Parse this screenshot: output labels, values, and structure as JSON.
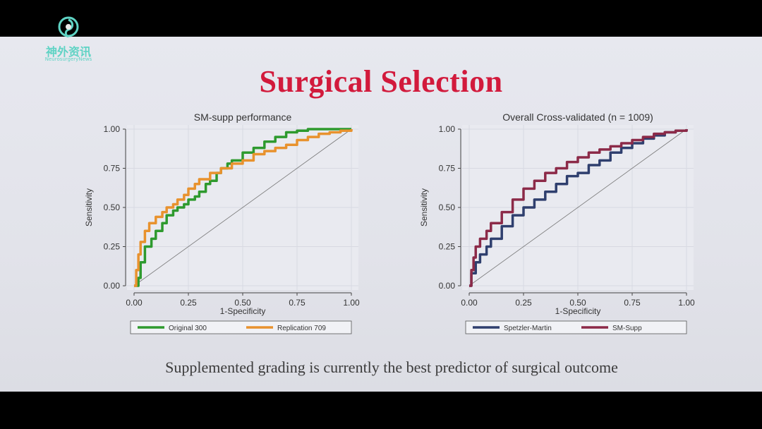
{
  "logo": {
    "name": "神外资讯",
    "subtitle": "NeurosurgeryNews"
  },
  "slide": {
    "title": "Surgical Selection",
    "caption": "Supplemented grading is currently the best predictor of surgical outcome"
  },
  "chart_data": [
    {
      "type": "line",
      "title": "SM-supp performance",
      "xlabel": "1-Specificity",
      "ylabel": "Sensitivity",
      "xlim": [
        0,
        1
      ],
      "ylim": [
        0,
        1
      ],
      "xticks": [
        "0.00",
        "0.25",
        "0.50",
        "0.75",
        "1.00"
      ],
      "yticks": [
        "0.00",
        "0.25",
        "0.50",
        "0.75",
        "1.00"
      ],
      "grid": true,
      "legend_position": "bottom",
      "reference_line": [
        [
          0,
          0
        ],
        [
          1,
          1
        ]
      ],
      "series": [
        {
          "name": "Original 300",
          "color": "#2e9a2e",
          "x": [
            0,
            0.02,
            0.03,
            0.05,
            0.08,
            0.1,
            0.13,
            0.15,
            0.18,
            0.2,
            0.23,
            0.25,
            0.28,
            0.3,
            0.33,
            0.35,
            0.38,
            0.4,
            0.43,
            0.45,
            0.5,
            0.55,
            0.6,
            0.65,
            0.7,
            0.75,
            0.8,
            0.85,
            0.9,
            1.0
          ],
          "y": [
            0,
            0.05,
            0.15,
            0.25,
            0.3,
            0.35,
            0.4,
            0.45,
            0.48,
            0.5,
            0.52,
            0.55,
            0.57,
            0.6,
            0.65,
            0.67,
            0.72,
            0.75,
            0.78,
            0.8,
            0.85,
            0.88,
            0.92,
            0.95,
            0.98,
            0.99,
            1.0,
            1.0,
            1.0,
            1.0
          ]
        },
        {
          "name": "Replication 709",
          "color": "#e8922e",
          "x": [
            0,
            0.01,
            0.02,
            0.03,
            0.05,
            0.07,
            0.1,
            0.13,
            0.15,
            0.18,
            0.2,
            0.23,
            0.25,
            0.28,
            0.3,
            0.35,
            0.4,
            0.45,
            0.5,
            0.55,
            0.6,
            0.65,
            0.7,
            0.75,
            0.8,
            0.85,
            0.9,
            0.95,
            1.0
          ],
          "y": [
            0,
            0.1,
            0.2,
            0.28,
            0.35,
            0.4,
            0.44,
            0.47,
            0.5,
            0.52,
            0.55,
            0.58,
            0.62,
            0.65,
            0.68,
            0.72,
            0.75,
            0.78,
            0.8,
            0.84,
            0.86,
            0.88,
            0.9,
            0.93,
            0.95,
            0.97,
            0.98,
            0.99,
            1.0
          ]
        }
      ]
    },
    {
      "type": "line",
      "title": "Overall Cross-validated (n = 1009)",
      "xlabel": "1-Specificity",
      "ylabel": "Sensitivity",
      "xlim": [
        0,
        1
      ],
      "ylim": [
        0,
        1
      ],
      "xticks": [
        "0.00",
        "0.25",
        "0.50",
        "0.75",
        "1.00"
      ],
      "yticks": [
        "0.00",
        "0.25",
        "0.50",
        "0.75",
        "1.00"
      ],
      "grid": true,
      "legend_position": "bottom",
      "reference_line": [
        [
          0,
          0
        ],
        [
          1,
          1
        ]
      ],
      "series": [
        {
          "name": "Spetzler-Martin",
          "color": "#2f3f6e",
          "x": [
            0,
            0.01,
            0.03,
            0.05,
            0.08,
            0.1,
            0.15,
            0.2,
            0.25,
            0.3,
            0.35,
            0.4,
            0.45,
            0.5,
            0.55,
            0.6,
            0.65,
            0.7,
            0.75,
            0.8,
            0.85,
            0.9,
            0.95,
            1.0
          ],
          "y": [
            0,
            0.08,
            0.15,
            0.2,
            0.25,
            0.3,
            0.38,
            0.45,
            0.5,
            0.55,
            0.6,
            0.65,
            0.7,
            0.72,
            0.77,
            0.8,
            0.85,
            0.88,
            0.91,
            0.94,
            0.96,
            0.98,
            0.99,
            1.0
          ]
        },
        {
          "name": "SM-Supp",
          "color": "#8c2a48",
          "x": [
            0,
            0.01,
            0.02,
            0.03,
            0.05,
            0.08,
            0.1,
            0.15,
            0.2,
            0.25,
            0.3,
            0.35,
            0.4,
            0.45,
            0.5,
            0.55,
            0.6,
            0.65,
            0.7,
            0.75,
            0.8,
            0.85,
            0.9,
            0.95,
            1.0
          ],
          "y": [
            0,
            0.1,
            0.18,
            0.25,
            0.3,
            0.35,
            0.4,
            0.47,
            0.55,
            0.62,
            0.67,
            0.72,
            0.75,
            0.79,
            0.82,
            0.85,
            0.87,
            0.89,
            0.91,
            0.93,
            0.95,
            0.97,
            0.98,
            0.99,
            1.0
          ]
        }
      ]
    }
  ]
}
